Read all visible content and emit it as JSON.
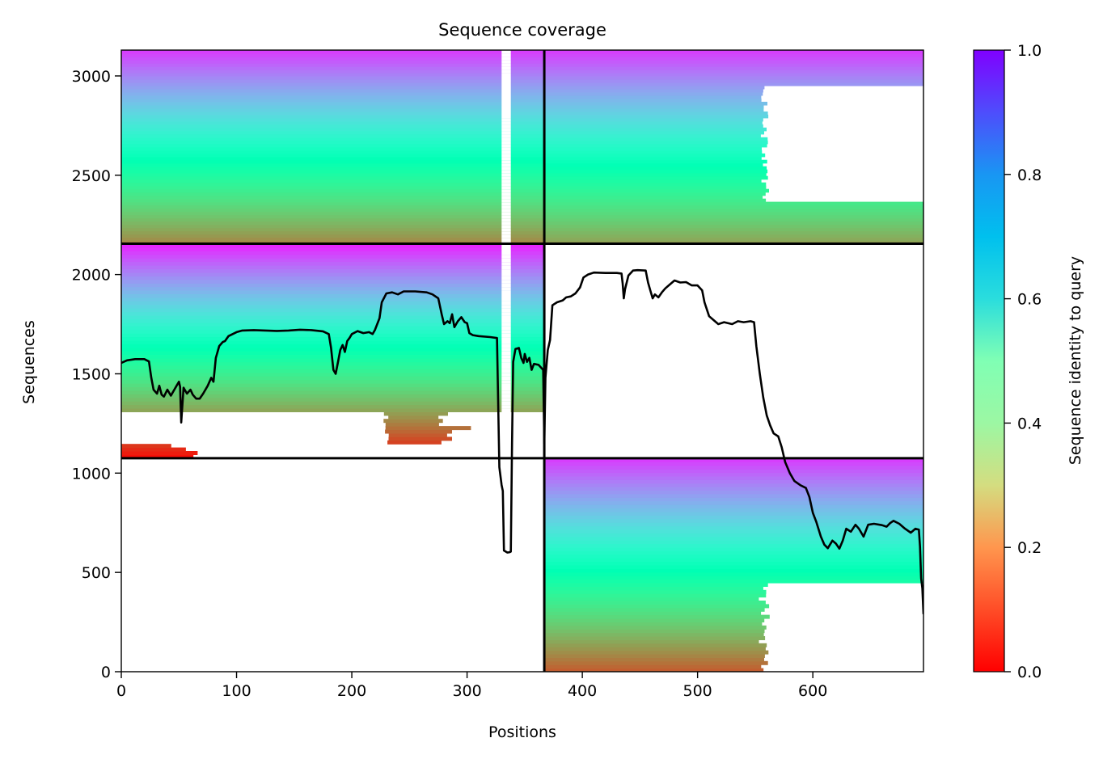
{
  "chart_data": {
    "type": "heatmap",
    "title": "Sequence coverage",
    "xlabel": "Positions",
    "ylabel": "Sequences",
    "xlim": [
      0,
      696
    ],
    "ylim": [
      0,
      3130
    ],
    "x_ticks": [
      0,
      100,
      200,
      300,
      400,
      500,
      600
    ],
    "y_ticks": [
      0,
      500,
      1000,
      1500,
      2000,
      2500,
      3000
    ],
    "colorbar": {
      "label": "Sequence identity to query",
      "colormap": "rainbow_r",
      "range": [
        0.0,
        1.0
      ],
      "ticks": [
        "0.0",
        "0.2",
        "0.4",
        "0.6",
        "0.8",
        "1.0"
      ]
    },
    "chain_boundaries": {
      "x": [
        367
      ],
      "y": [
        1075,
        2155
      ]
    },
    "blocks": [
      {
        "name": "chain1-chain1",
        "x": [
          0,
          367
        ],
        "y": [
          2155,
          3130
        ],
        "identity": [
          0.18,
          0.92
        ],
        "gap_x": [
          330,
          338
        ]
      },
      {
        "name": "chain1-chain2",
        "x": [
          367,
          696
        ],
        "y": [
          2155,
          3130
        ],
        "identity": [
          0.22,
          0.92
        ],
        "coverage_end_upper": 558
      },
      {
        "name": "chain1-only",
        "x": [
          0,
          367
        ],
        "y": [
          1075,
          2155
        ],
        "identity": [
          0.02,
          0.95
        ],
        "gap_x": [
          330,
          338
        ]
      },
      {
        "name": "chain2-only",
        "x": [
          367,
          696
        ],
        "y": [
          0,
          1075
        ],
        "identity": [
          0.12,
          0.92
        ],
        "coverage_end_lower": 558
      }
    ],
    "coverage_line": {
      "color": "#000000",
      "points": [
        [
          0,
          1555
        ],
        [
          5,
          1568
        ],
        [
          12,
          1574
        ],
        [
          20,
          1574
        ],
        [
          24,
          1562
        ],
        [
          26,
          1480
        ],
        [
          28,
          1420
        ],
        [
          31,
          1400
        ],
        [
          33,
          1440
        ],
        [
          35,
          1395
        ],
        [
          37,
          1385
        ],
        [
          40,
          1420
        ],
        [
          43,
          1390
        ],
        [
          45,
          1410
        ],
        [
          48,
          1440
        ],
        [
          50,
          1460
        ],
        [
          51,
          1435
        ],
        [
          52,
          1255
        ],
        [
          54,
          1430
        ],
        [
          57,
          1400
        ],
        [
          60,
          1420
        ],
        [
          62,
          1395
        ],
        [
          65,
          1375
        ],
        [
          68,
          1375
        ],
        [
          71,
          1400
        ],
        [
          75,
          1440
        ],
        [
          78,
          1480
        ],
        [
          80,
          1460
        ],
        [
          82,
          1580
        ],
        [
          85,
          1640
        ],
        [
          88,
          1660
        ],
        [
          90,
          1665
        ],
        [
          93,
          1690
        ],
        [
          100,
          1710
        ],
        [
          105,
          1718
        ],
        [
          115,
          1720
        ],
        [
          125,
          1718
        ],
        [
          135,
          1716
        ],
        [
          145,
          1718
        ],
        [
          155,
          1722
        ],
        [
          165,
          1720
        ],
        [
          175,
          1714
        ],
        [
          180,
          1700
        ],
        [
          182,
          1630
        ],
        [
          184,
          1520
        ],
        [
          186,
          1500
        ],
        [
          188,
          1560
        ],
        [
          190,
          1620
        ],
        [
          192,
          1645
        ],
        [
          194,
          1610
        ],
        [
          196,
          1665
        ],
        [
          198,
          1680
        ],
        [
          200,
          1700
        ],
        [
          205,
          1715
        ],
        [
          210,
          1705
        ],
        [
          215,
          1710
        ],
        [
          218,
          1700
        ],
        [
          220,
          1720
        ],
        [
          224,
          1780
        ],
        [
          226,
          1860
        ],
        [
          230,
          1905
        ],
        [
          235,
          1910
        ],
        [
          240,
          1900
        ],
        [
          245,
          1915
        ],
        [
          255,
          1915
        ],
        [
          265,
          1910
        ],
        [
          270,
          1900
        ],
        [
          275,
          1880
        ],
        [
          278,
          1800
        ],
        [
          280,
          1750
        ],
        [
          283,
          1765
        ],
        [
          285,
          1755
        ],
        [
          287,
          1800
        ],
        [
          289,
          1735
        ],
        [
          292,
          1765
        ],
        [
          295,
          1785
        ],
        [
          298,
          1760
        ],
        [
          300,
          1755
        ],
        [
          302,
          1705
        ],
        [
          305,
          1695
        ],
        [
          310,
          1690
        ],
        [
          320,
          1685
        ],
        [
          326,
          1680
        ],
        [
          328,
          1030
        ],
        [
          330,
          940
        ],
        [
          331,
          910
        ],
        [
          332,
          610
        ],
        [
          335,
          600
        ],
        [
          337,
          602
        ],
        [
          338,
          605
        ],
        [
          339,
          1150
        ],
        [
          340,
          1560
        ],
        [
          342,
          1625
        ],
        [
          345,
          1630
        ],
        [
          347,
          1580
        ],
        [
          349,
          1555
        ],
        [
          350,
          1600
        ],
        [
          352,
          1560
        ],
        [
          354,
          1580
        ],
        [
          356,
          1520
        ],
        [
          358,
          1550
        ],
        [
          362,
          1545
        ],
        [
          366,
          1520
        ],
        [
          367,
          1150
        ],
        [
          367,
          1150
        ],
        [
          368,
          1480
        ],
        [
          370,
          1620
        ],
        [
          372,
          1670
        ],
        [
          374,
          1845
        ],
        [
          378,
          1860
        ],
        [
          383,
          1870
        ],
        [
          386,
          1885
        ],
        [
          390,
          1890
        ],
        [
          394,
          1905
        ],
        [
          398,
          1935
        ],
        [
          401,
          1985
        ],
        [
          405,
          2000
        ],
        [
          410,
          2010
        ],
        [
          420,
          2008
        ],
        [
          430,
          2008
        ],
        [
          434,
          2005
        ],
        [
          435,
          1955
        ],
        [
          436,
          1880
        ],
        [
          437,
          1925
        ],
        [
          440,
          1995
        ],
        [
          444,
          2020
        ],
        [
          448,
          2022
        ],
        [
          455,
          2020
        ],
        [
          457,
          1960
        ],
        [
          459,
          1920
        ],
        [
          461,
          1880
        ],
        [
          463,
          1900
        ],
        [
          466,
          1885
        ],
        [
          469,
          1910
        ],
        [
          472,
          1930
        ],
        [
          476,
          1950
        ],
        [
          480,
          1970
        ],
        [
          485,
          1960
        ],
        [
          490,
          1962
        ],
        [
          495,
          1945
        ],
        [
          500,
          1945
        ],
        [
          504,
          1920
        ],
        [
          506,
          1860
        ],
        [
          510,
          1790
        ],
        [
          514,
          1770
        ],
        [
          518,
          1750
        ],
        [
          523,
          1760
        ],
        [
          530,
          1750
        ],
        [
          535,
          1765
        ],
        [
          540,
          1760
        ],
        [
          546,
          1765
        ],
        [
          549,
          1760
        ],
        [
          551,
          1640
        ],
        [
          554,
          1500
        ],
        [
          557,
          1380
        ],
        [
          560,
          1290
        ],
        [
          563,
          1240
        ],
        [
          566,
          1200
        ],
        [
          570,
          1185
        ],
        [
          573,
          1130
        ],
        [
          576,
          1055
        ],
        [
          580,
          1000
        ],
        [
          584,
          960
        ],
        [
          589,
          940
        ],
        [
          594,
          925
        ],
        [
          597,
          880
        ],
        [
          600,
          800
        ],
        [
          603,
          755
        ],
        [
          607,
          680
        ],
        [
          610,
          640
        ],
        [
          613,
          622
        ],
        [
          617,
          660
        ],
        [
          620,
          645
        ],
        [
          623,
          620
        ],
        [
          626,
          660
        ],
        [
          629,
          720
        ],
        [
          633,
          705
        ],
        [
          637,
          740
        ],
        [
          640,
          720
        ],
        [
          644,
          680
        ],
        [
          648,
          740
        ],
        [
          653,
          745
        ],
        [
          660,
          738
        ],
        [
          664,
          730
        ],
        [
          667,
          748
        ],
        [
          670,
          760
        ],
        [
          675,
          745
        ],
        [
          680,
          720
        ],
        [
          685,
          700
        ],
        [
          689,
          720
        ],
        [
          692,
          715
        ],
        [
          693,
          630
        ],
        [
          694,
          470
        ],
        [
          695,
          420
        ],
        [
          696,
          290
        ]
      ]
    }
  }
}
